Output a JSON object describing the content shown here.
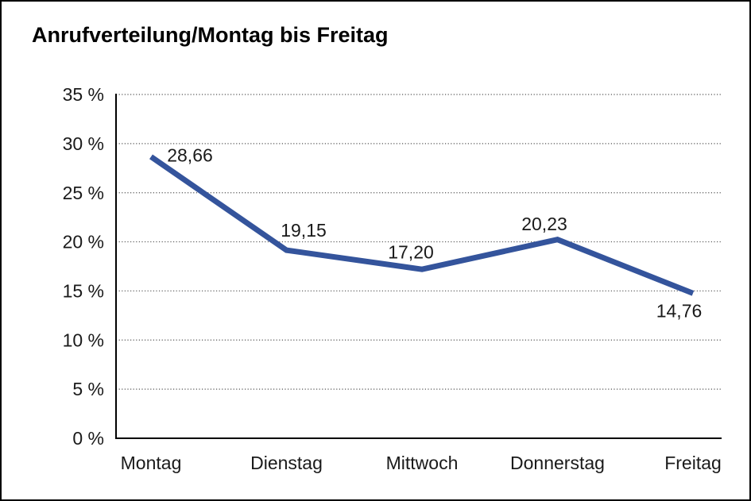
{
  "title": "Anrufverteilung/Montag bis Freitag",
  "chart_data": {
    "type": "line",
    "title": "Anrufverteilung/Montag bis Freitag",
    "categories": [
      "Montag",
      "Dienstag",
      "Mittwoch",
      "Donnerstag",
      "Freitag"
    ],
    "values": [
      28.66,
      19.15,
      17.2,
      20.23,
      14.76
    ],
    "value_labels": [
      "28,66",
      "19,15",
      "17,20",
      "20,23",
      "14,76"
    ],
    "series_name": "Anrufverteilung",
    "xlabel": "",
    "ylabel": "",
    "ylim": [
      0,
      35
    ],
    "y_ticks": [
      0,
      5,
      10,
      15,
      20,
      25,
      30,
      35
    ],
    "y_tick_labels": [
      "0 %",
      "5 %",
      "10 %",
      "15 %",
      "20 %",
      "25 %",
      "30 %",
      "35 %"
    ],
    "grid": "horizontal-dotted",
    "legend_position": "none",
    "colors": {
      "line": "#34549c",
      "grid": "#555555",
      "axis": "#000000",
      "text": "#1a1a1a",
      "background": "#ffffff",
      "border": "#000000"
    }
  }
}
